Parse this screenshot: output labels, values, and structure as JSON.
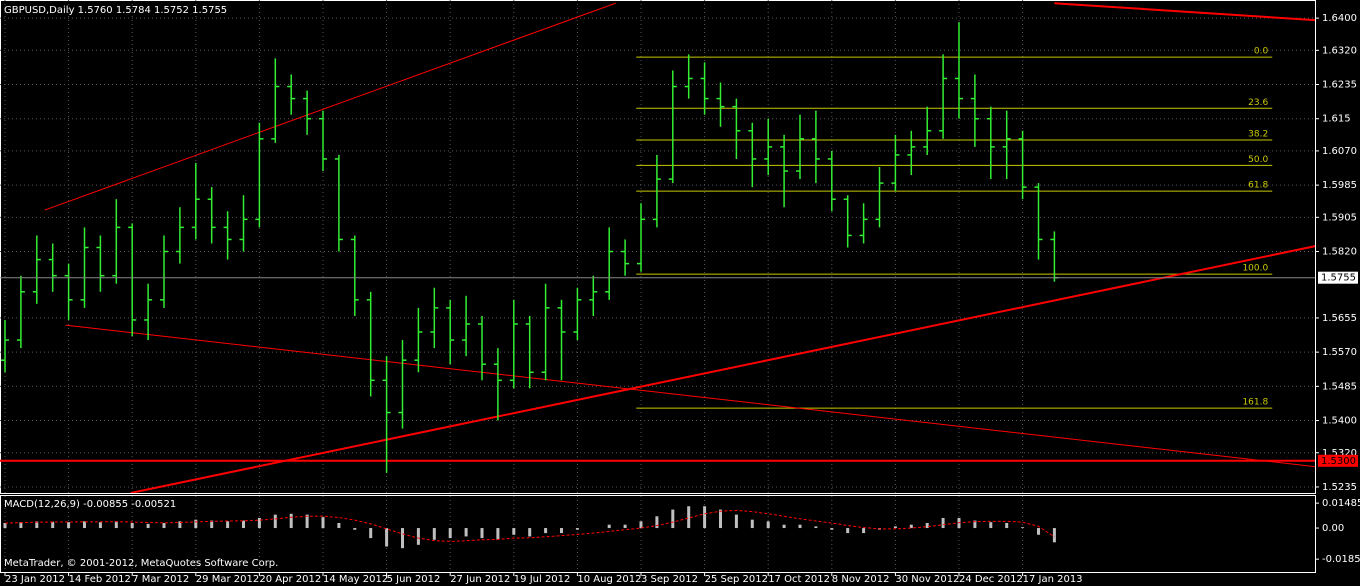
{
  "chart_data": {
    "type": "ohlc",
    "title": "GBPUSD,Daily  1.5760 1.5784 1.5752 1.5755",
    "copyright": "MetaTrader, © 2001-2012, MetaQuotes Software Corp.",
    "color": "#33ee33",
    "grid": true,
    "categories": [
      "23 Jan 2012",
      null,
      null,
      null,
      "14 Feb 2012",
      null,
      null,
      null,
      "7 Mar 2012",
      null,
      null,
      null,
      "29 Mar 2012",
      null,
      null,
      null,
      "20 Apr 2012",
      null,
      null,
      null,
      "14 May 2012",
      null,
      null,
      null,
      "5 Jun 2012",
      null,
      null,
      null,
      "27 Jun 2012",
      null,
      null,
      null,
      "19 Jul 2012",
      null,
      null,
      null,
      "10 Aug 2012",
      null,
      null,
      null,
      "3 Sep 2012",
      null,
      null,
      null,
      "25 Sep 2012",
      null,
      null,
      null,
      "17 Oct 2012",
      null,
      null,
      null,
      "8 Nov 2012",
      null,
      null,
      null,
      "30 Nov 2012",
      null,
      null,
      null,
      "24 Dec 2012",
      null,
      null,
      null,
      "17 Jan 2013",
      null,
      null
    ],
    "open": [
      1.555,
      1.56,
      1.572,
      1.58,
      1.576,
      1.57,
      1.583,
      1.576,
      1.588,
      1.565,
      1.57,
      1.582,
      1.588,
      1.595,
      1.588,
      1.585,
      1.59,
      1.61,
      1.623,
      1.62,
      1.615,
      1.605,
      1.585,
      1.57,
      1.55,
      1.542,
      1.555,
      1.562,
      1.568,
      1.56,
      1.564,
      1.554,
      1.55,
      1.564,
      1.552,
      1.568,
      1.562,
      1.57,
      1.572,
      1.582,
      1.579,
      1.59,
      1.6,
      1.623,
      1.625,
      1.62,
      1.618,
      1.612,
      1.605,
      1.608,
      1.602,
      1.61,
      1.605,
      1.595,
      1.586,
      1.59,
      1.599,
      1.606,
      1.608,
      1.612,
      1.625,
      1.62,
      1.615,
      1.608,
      1.61,
      1.598,
      1.585
    ],
    "high": [
      1.565,
      1.576,
      1.586,
      1.584,
      1.579,
      1.588,
      1.586,
      1.595,
      1.589,
      1.574,
      1.586,
      1.593,
      1.604,
      1.598,
      1.592,
      1.596,
      1.614,
      1.63,
      1.626,
      1.622,
      1.617,
      1.606,
      1.586,
      1.572,
      1.556,
      1.56,
      1.568,
      1.573,
      1.57,
      1.571,
      1.566,
      1.558,
      1.57,
      1.566,
      1.574,
      1.57,
      1.573,
      1.576,
      1.588,
      1.585,
      1.594,
      1.606,
      1.627,
      1.631,
      1.629,
      1.624,
      1.62,
      1.614,
      1.615,
      1.611,
      1.616,
      1.617,
      1.607,
      1.596,
      1.594,
      1.603,
      1.611,
      1.612,
      1.618,
      1.631,
      1.639,
      1.626,
      1.618,
      1.617,
      1.612,
      1.599,
      1.587
    ],
    "low": [
      1.552,
      1.558,
      1.569,
      1.572,
      1.565,
      1.568,
      1.572,
      1.574,
      1.561,
      1.56,
      1.568,
      1.579,
      1.585,
      1.584,
      1.58,
      1.582,
      1.588,
      1.609,
      1.616,
      1.611,
      1.602,
      1.582,
      1.566,
      1.546,
      1.527,
      1.538,
      1.552,
      1.558,
      1.554,
      1.556,
      1.55,
      1.54,
      1.548,
      1.548,
      1.55,
      1.55,
      1.56,
      1.566,
      1.57,
      1.576,
      1.577,
      1.588,
      1.599,
      1.62,
      1.616,
      1.613,
      1.605,
      1.598,
      1.601,
      1.593,
      1.6,
      1.599,
      1.592,
      1.583,
      1.584,
      1.588,
      1.597,
      1.601,
      1.606,
      1.61,
      1.615,
      1.608,
      1.6,
      1.6,
      1.595,
      1.58,
      1.5745
    ],
    "close": [
      1.56,
      1.572,
      1.58,
      1.576,
      1.57,
      1.583,
      1.576,
      1.588,
      1.565,
      1.57,
      1.582,
      1.588,
      1.595,
      1.588,
      1.585,
      1.59,
      1.61,
      1.623,
      1.62,
      1.615,
      1.605,
      1.585,
      1.57,
      1.55,
      1.542,
      1.555,
      1.562,
      1.568,
      1.56,
      1.564,
      1.554,
      1.55,
      1.564,
      1.552,
      1.568,
      1.562,
      1.57,
      1.572,
      1.582,
      1.579,
      1.59,
      1.6,
      1.623,
      1.625,
      1.62,
      1.618,
      1.612,
      1.605,
      1.608,
      1.602,
      1.61,
      1.605,
      1.595,
      1.586,
      1.59,
      1.599,
      1.606,
      1.608,
      1.612,
      1.625,
      1.62,
      1.615,
      1.608,
      1.61,
      1.598,
      1.585,
      1.5755
    ],
    "ylim": [
      1.522,
      1.6445
    ],
    "yticks": [
      {
        "value": 1.64,
        "label": "1.6400"
      },
      {
        "value": 1.632,
        "label": "1.6320"
      },
      1.6235,
      1.615,
      {
        "value": 1.607,
        "label": "1.6070"
      },
      1.5985,
      1.5905,
      {
        "value": 1.582,
        "label": "1.5820"
      },
      1.5655,
      {
        "value": 1.557,
        "label": "1.5570"
      },
      1.5485,
      {
        "value": 1.54,
        "label": "1.5400"
      },
      {
        "value": 1.532,
        "label": "1.5320"
      },
      1.5235
    ],
    "current_price": 1.5755,
    "hline": {
      "value": 1.53,
      "label": "1.5300",
      "color": "#ff0000"
    },
    "trendlines": [
      {
        "x": [
          2.5,
          38.4
        ],
        "y": [
          1.5923,
          1.6437
        ],
        "color": "#ff0000",
        "width": 1
      },
      {
        "x": [
          3.8,
          84.3
        ],
        "y": [
          1.5637,
          1.5277
        ],
        "color": "#ff0000",
        "width": 1
      },
      {
        "x": [
          7.9,
          84.3
        ],
        "y": [
          1.522,
          1.5849
        ],
        "color": "#ff0000",
        "width": 2
      },
      {
        "x": [
          66.0,
          82.4
        ],
        "y": [
          1.6437,
          1.6395
        ],
        "color": "#ff0000",
        "width": 2
      }
    ],
    "fibo": {
      "x": [
        39.7,
        79.7
      ],
      "color": "#c8c800",
      "levels": [
        {
          "label": "0.0",
          "price": 1.6303
        },
        {
          "label": "23.6",
          "price": 1.6176
        },
        {
          "label": "38.2",
          "price": 1.6097
        },
        {
          "label": "50.0",
          "price": 1.6034
        },
        {
          "label": "61.8",
          "price": 1.597
        },
        {
          "label": "100.0",
          "price": 1.5764
        },
        {
          "label": "161.8",
          "price": 1.5431
        }
      ]
    },
    "macd": {
      "label": "MACD(12,26,9) -0.00855 -0.00521",
      "ylim": [
        -0.025,
        0.0185
      ],
      "yticks": [
        0.01485,
        {
          "value": 0,
          "label": "0.00"
        },
        -0.01854
      ],
      "histogram_color": "#c0c0c0",
      "signal_color": "#ff0000",
      "histogram": [
        0.003,
        0.0035,
        0.004,
        0.0038,
        0.0035,
        0.004,
        0.0035,
        0.0042,
        0.003,
        0.0025,
        0.003,
        0.004,
        0.005,
        0.0045,
        0.004,
        0.0045,
        0.006,
        0.008,
        0.0085,
        0.008,
        0.0065,
        0.003,
        -0.001,
        -0.006,
        -0.011,
        -0.012,
        -0.01,
        -0.007,
        -0.006,
        -0.005,
        -0.006,
        -0.007,
        -0.004,
        -0.005,
        -0.003,
        -0.003,
        -0.001,
        0.0,
        0.002,
        0.002,
        0.004,
        0.007,
        0.011,
        0.013,
        0.013,
        0.011,
        0.008,
        0.005,
        0.004,
        0.002,
        0.002,
        0.001,
        -0.001,
        -0.003,
        -0.003,
        -0.001,
        0.001,
        0.002,
        0.003,
        0.006,
        0.006,
        0.0045,
        0.0035,
        0.003,
        0.0005,
        -0.004,
        -0.0085
      ],
      "signal": [
        0.003,
        0.0032,
        0.0035,
        0.0036,
        0.0036,
        0.0037,
        0.0037,
        0.0038,
        0.0036,
        0.0033,
        0.0031,
        0.0033,
        0.0037,
        0.004,
        0.0042,
        0.0043,
        0.0047,
        0.0055,
        0.0064,
        0.007,
        0.0071,
        0.0063,
        0.0047,
        0.0025,
        -0.0005,
        -0.0035,
        -0.006,
        -0.0075,
        -0.008,
        -0.0075,
        -0.007,
        -0.0068,
        -0.006,
        -0.0058,
        -0.0052,
        -0.0045,
        -0.0038,
        -0.003,
        -0.002,
        -0.001,
        0.0,
        0.0015,
        0.0035,
        0.006,
        0.0085,
        0.01,
        0.0105,
        0.0098,
        0.0085,
        0.007,
        0.0055,
        0.0042,
        0.003,
        0.0015,
        0.0003,
        -0.0005,
        -0.0005,
        0.0,
        0.0008,
        0.002,
        0.0032,
        0.0038,
        0.004,
        0.004,
        0.0035,
        0.001,
        -0.0052
      ]
    }
  }
}
